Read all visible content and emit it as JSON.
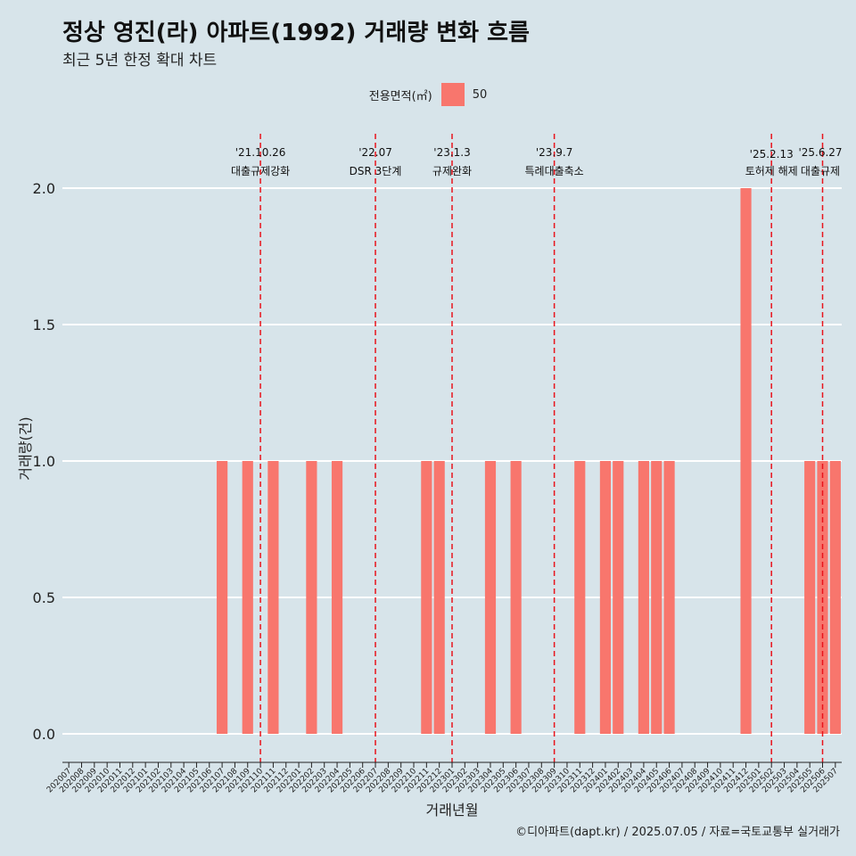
{
  "header": {
    "title": "정상 영진(라) 아파트(1992) 거래량 변화 흐름",
    "subtitle": "최근 5년 한정 확대 차트"
  },
  "legend": {
    "title": "전용면적(㎡)",
    "item": "50",
    "color": "#f8766d"
  },
  "caption": "©디아파트(dapt.kr) / 2025.07.05 / 자료=국토교통부 실거래가",
  "chart_data": {
    "type": "bar",
    "xlabel": "거래년월",
    "ylabel": "거래량(건)",
    "ylim": [
      0,
      2
    ],
    "y_ticks": [
      "0.0",
      "0.5",
      "1.0",
      "1.5",
      "2.0"
    ],
    "grid": "horizontal",
    "legend_position": "top",
    "bar_color": "#f8766d",
    "categories": [
      "202007",
      "202008",
      "202009",
      "202010",
      "202011",
      "202012",
      "202101",
      "202102",
      "202103",
      "202104",
      "202105",
      "202106",
      "202107",
      "202108",
      "202109",
      "202110",
      "202111",
      "202112",
      "202201",
      "202202",
      "202203",
      "202204",
      "202205",
      "202206",
      "202207",
      "202208",
      "202209",
      "202210",
      "202211",
      "202212",
      "202301",
      "202302",
      "202303",
      "202304",
      "202305",
      "202306",
      "202307",
      "202308",
      "202309",
      "202310",
      "202311",
      "202312",
      "202401",
      "202402",
      "202403",
      "202404",
      "202405",
      "202406",
      "202407",
      "202408",
      "202409",
      "202410",
      "202411",
      "202412",
      "202501",
      "202502",
      "202503",
      "202504",
      "202505",
      "202506",
      "202507"
    ],
    "series": [
      {
        "name": "50",
        "values": [
          0,
          0,
          0,
          0,
          0,
          0,
          0,
          0,
          0,
          0,
          0,
          0,
          1,
          0,
          1,
          0,
          1,
          0,
          0,
          1,
          0,
          1,
          0,
          0,
          0,
          0,
          0,
          0,
          1,
          1,
          0,
          0,
          0,
          1,
          0,
          1,
          0,
          0,
          0,
          0,
          1,
          0,
          1,
          1,
          0,
          1,
          1,
          1,
          0,
          0,
          0,
          0,
          0,
          2,
          0,
          0,
          0,
          0,
          1,
          1,
          1
        ]
      }
    ],
    "annotations": [
      {
        "date": "'21.10.26",
        "label": "대출규제강화",
        "x": "202110"
      },
      {
        "date": "'22.07",
        "label": "DSR 3단계",
        "x": "202207"
      },
      {
        "date": "'23.1.3",
        "label": "규제완화",
        "x": "202301"
      },
      {
        "date": "'23.9.7",
        "label": "특례대출축소",
        "x": "202309"
      },
      {
        "date": "'25.2.13",
        "label": "토허제 해제",
        "x": "202502"
      },
      {
        "date": "'25.6.27",
        "label": "대출규제",
        "x": "202506"
      }
    ]
  }
}
